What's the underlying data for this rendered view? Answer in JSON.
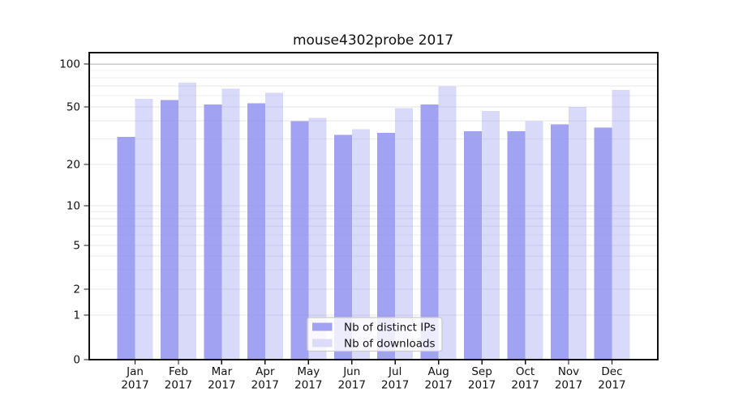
{
  "chart_data": {
    "type": "bar",
    "title": "mouse4302probe 2017",
    "categories": [
      "Jan",
      "Feb",
      "Mar",
      "Apr",
      "May",
      "Jun",
      "Jul",
      "Aug",
      "Sep",
      "Oct",
      "Nov",
      "Dec"
    ],
    "category_year": "2017",
    "series": [
      {
        "name": "Nb of distinct IPs",
        "values": [
          31,
          56,
          52,
          53,
          40,
          32,
          33,
          52,
          34,
          34,
          38,
          36
        ],
        "fill": "rgba(136,136,238,0.78)",
        "swatch": "#a2a2f2"
      },
      {
        "name": "Nb of downloads",
        "values": [
          57,
          74,
          67,
          63,
          42,
          35,
          49,
          70,
          47,
          40,
          50,
          66
        ],
        "fill": "rgba(136,136,238,0.32)",
        "swatch": "#dcdcfa"
      }
    ],
    "yscale": "log-like",
    "ylim": [
      0,
      120
    ],
    "ytick_values": [
      0,
      1,
      2,
      5,
      10,
      20,
      50,
      100
    ],
    "minor_grid_values": [
      3,
      4,
      6,
      7,
      8,
      9,
      30,
      40,
      60,
      70,
      80,
      90
    ],
    "grid": true,
    "legend_position": "lower center",
    "style": {
      "axis_color": "#111111",
      "grid_minor_color": "#efefef",
      "grid_major_color": "#e6e6e6",
      "grid_top_color": "#c7c7c7",
      "legend_bg": "rgba(255,255,255,0.8)",
      "legend_border": "#cccccc"
    }
  }
}
